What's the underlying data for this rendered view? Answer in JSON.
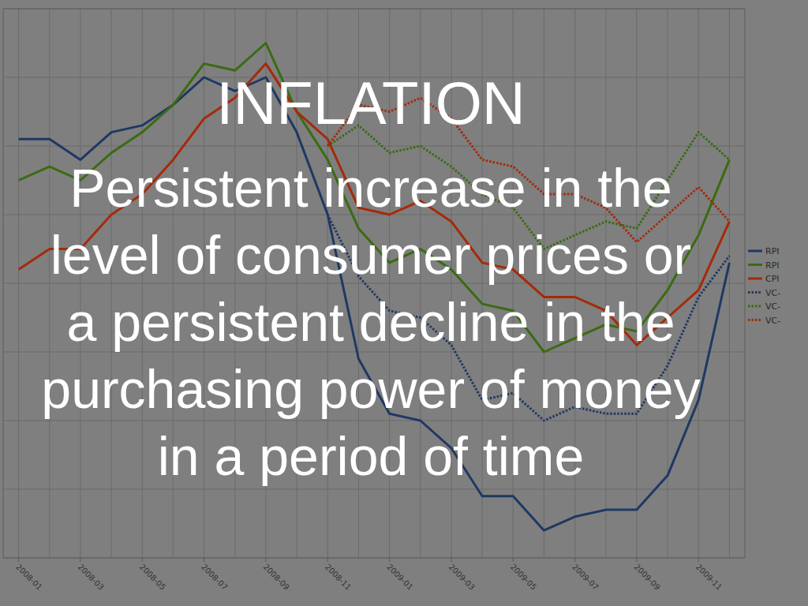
{
  "chart_data": {
    "type": "line",
    "title": "INFLATION",
    "annotations": [
      "Persistent increase in the",
      "level of consumer prices or",
      "a persistent decline in the",
      "purchasing power of money",
      "in a period of time"
    ],
    "categories": [
      "2008-01",
      null,
      "2008-03",
      null,
      "2008-05",
      null,
      "2008-07",
      null,
      "2008-09",
      null,
      "2008-11",
      null,
      "2009-01",
      null,
      "2009-03",
      null,
      "2009-05",
      null,
      "2009-07",
      null,
      "2009-09",
      null,
      "2009-11",
      null
    ],
    "series": [
      {
        "name": "RPI",
        "color": "#1f3864",
        "line_style": "solid",
        "values": [
          4.1,
          4.1,
          3.8,
          4.2,
          4.3,
          4.6,
          5.0,
          4.8,
          5.0,
          4.2,
          3.0,
          0.9,
          0.1,
          0.0,
          -0.4,
          -1.1,
          -1.1,
          -1.6,
          -1.4,
          -1.3,
          -1.3,
          -0.8,
          0.3,
          2.3
        ]
      },
      {
        "name": "RPI",
        "color": "#3a6b12",
        "line_style": "solid",
        "values": [
          3.5,
          3.7,
          3.5,
          3.9,
          4.2,
          4.6,
          5.2,
          5.1,
          5.5,
          4.5,
          3.8,
          2.8,
          2.3,
          2.5,
          2.2,
          1.7,
          1.6,
          1.0,
          1.2,
          1.4,
          1.3,
          1.9,
          2.7,
          3.8
        ]
      },
      {
        "name": "CPI",
        "color": "#a52a0a",
        "line_style": "solid",
        "values": [
          2.2,
          2.5,
          2.5,
          3.0,
          3.3,
          3.8,
          4.4,
          4.7,
          5.2,
          4.5,
          4.1,
          3.1,
          3.0,
          3.2,
          2.9,
          2.3,
          2.2,
          1.8,
          1.8,
          1.6,
          1.1,
          1.5,
          1.9,
          2.9
        ]
      },
      {
        "name": "VC-",
        "color": "#1f3864",
        "line_style": "dotted",
        "values": [
          null,
          null,
          null,
          null,
          null,
          null,
          null,
          null,
          null,
          null,
          3.0,
          2.1,
          1.6,
          1.5,
          1.1,
          0.3,
          0.4,
          0.0,
          0.2,
          0.1,
          0.1,
          0.8,
          1.8,
          2.4
        ]
      },
      {
        "name": "VC-",
        "color": "#3a6b12",
        "line_style": "dotted",
        "values": [
          null,
          null,
          null,
          null,
          null,
          null,
          null,
          null,
          null,
          null,
          4.0,
          4.3,
          3.9,
          4.0,
          3.7,
          3.3,
          3.1,
          2.5,
          2.7,
          2.9,
          2.8,
          3.5,
          4.2,
          3.8
        ]
      },
      {
        "name": "VC-",
        "color": "#a52a0a",
        "line_style": "dotted",
        "values": [
          null,
          null,
          null,
          null,
          null,
          null,
          null,
          null,
          null,
          null,
          4.0,
          4.6,
          4.5,
          4.7,
          4.4,
          3.8,
          3.7,
          3.3,
          3.3,
          3.1,
          2.6,
          3.0,
          3.4,
          2.9
        ]
      }
    ],
    "ylim": [
      -2,
      6
    ],
    "yticks": [
      -2,
      -1,
      0,
      1,
      2,
      3,
      4,
      5,
      6
    ],
    "grid": true,
    "legend": "right",
    "tick_labels": "x"
  }
}
